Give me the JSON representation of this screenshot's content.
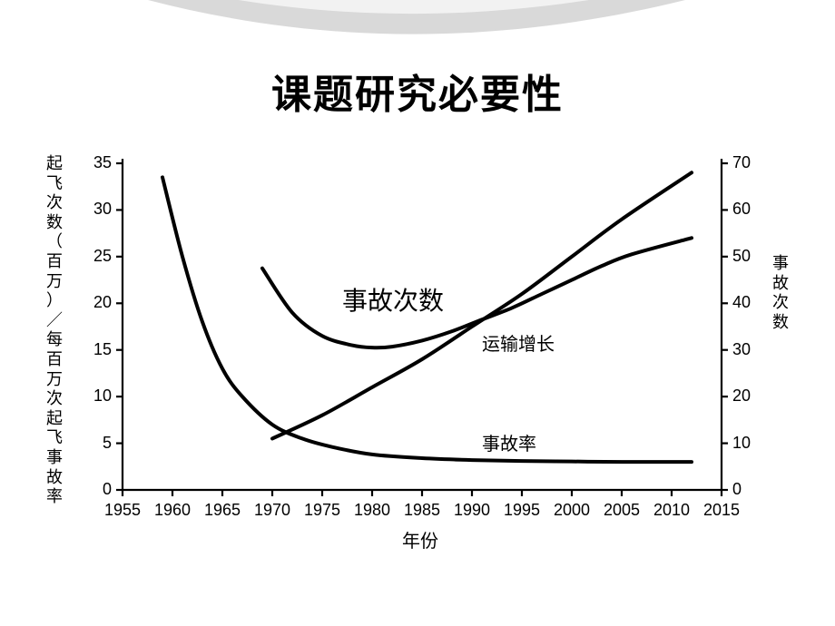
{
  "title": "课题研究必要性",
  "chart": {
    "type": "line",
    "background_color": "#ffffff",
    "axis_color": "#000000",
    "line_color": "#000000",
    "line_width_axis": 2.2,
    "line_width_series": 4,
    "x": {
      "label": "年份",
      "min": 1955,
      "max": 2015,
      "ticks": [
        1955,
        1960,
        1965,
        1970,
        1975,
        1980,
        1985,
        1990,
        1995,
        2000,
        2005,
        2010,
        2015
      ],
      "label_fontsize": 20,
      "tick_fontsize": 18
    },
    "yLeft": {
      "label": "起飞次数（百万）／每百万次起飞事故率",
      "min": 0,
      "max": 35,
      "ticks": [
        0,
        5,
        10,
        15,
        20,
        25,
        30,
        35
      ],
      "tick_fontsize": 18
    },
    "yRight": {
      "label": "事故次数",
      "min": 0,
      "max": 70,
      "ticks": [
        0,
        10,
        20,
        30,
        40,
        50,
        60,
        70
      ],
      "tick_fontsize": 18
    },
    "series": {
      "accident_rate": {
        "label": "事故率",
        "axis": "left",
        "label_pos_year": 1991,
        "label_pos_val": 5.2,
        "label_fontsize": 20,
        "points": [
          [
            1959,
            33.5
          ],
          [
            1961,
            25
          ],
          [
            1963,
            18
          ],
          [
            1965,
            13
          ],
          [
            1967,
            10
          ],
          [
            1970,
            7
          ],
          [
            1973,
            5.5
          ],
          [
            1976,
            4.6
          ],
          [
            1980,
            3.8
          ],
          [
            1985,
            3.4
          ],
          [
            1990,
            3.2
          ],
          [
            1995,
            3.1
          ],
          [
            2000,
            3.05
          ],
          [
            2005,
            3.0
          ],
          [
            2012,
            3.0
          ]
        ]
      },
      "transport_growth": {
        "label": "运输增长",
        "axis": "left",
        "label_pos_year": 1991,
        "label_pos_val": 15.8,
        "label_fontsize": 20,
        "points": [
          [
            1970,
            5.5
          ],
          [
            1975,
            8
          ],
          [
            1980,
            11
          ],
          [
            1985,
            14
          ],
          [
            1990,
            17.5
          ],
          [
            1995,
            21
          ],
          [
            2000,
            25
          ],
          [
            2005,
            29
          ],
          [
            2012,
            34
          ]
        ]
      },
      "accident_count": {
        "label": "事故次数",
        "axis": "right",
        "label_pos_year": 1977,
        "label_pos_val": 42,
        "label_fontsize": 28,
        "points": [
          [
            1969,
            47.5
          ],
          [
            1972,
            38
          ],
          [
            1975,
            33
          ],
          [
            1978,
            31
          ],
          [
            1980,
            30.5
          ],
          [
            1982,
            30.7
          ],
          [
            1985,
            32
          ],
          [
            1988,
            34
          ],
          [
            1991,
            36.5
          ],
          [
            1994,
            39
          ],
          [
            1997,
            42
          ],
          [
            2000,
            45
          ],
          [
            2003,
            48
          ],
          [
            2006,
            50.5
          ],
          [
            2012,
            54
          ]
        ]
      }
    }
  },
  "swoosh": {
    "outer_color": "#d9d9d9",
    "inner_color": "#f2f2f2"
  }
}
